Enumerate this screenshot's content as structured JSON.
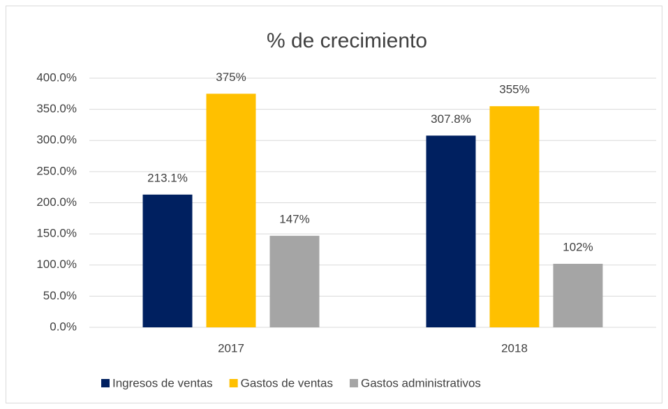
{
  "chart_data": {
    "type": "bar",
    "title": "% de crecimiento",
    "categories": [
      "2017",
      "2018"
    ],
    "series": [
      {
        "name": "Ingresos de ventas",
        "color": "#002060",
        "values": [
          213.1,
          307.8
        ],
        "value_labels": [
          "213.1%",
          "307.8%"
        ]
      },
      {
        "name": "Gastos de ventas",
        "color": "#FFC000",
        "values": [
          375,
          355
        ],
        "value_labels": [
          "375%",
          "355%"
        ]
      },
      {
        "name": "Gastos administrativos",
        "color": "#A5A5A5",
        "values": [
          147,
          102
        ],
        "value_labels": [
          "147%",
          "102%"
        ]
      }
    ],
    "ylim": [
      0,
      400
    ],
    "yticks": [
      {
        "value": 0,
        "label": "0.0%"
      },
      {
        "value": 50,
        "label": "50.0%"
      },
      {
        "value": 100,
        "label": "100.0%"
      },
      {
        "value": 150,
        "label": "150.0%"
      },
      {
        "value": 200,
        "label": "200.0%"
      },
      {
        "value": 250,
        "label": "250.0%"
      },
      {
        "value": 300,
        "label": "300.0%"
      },
      {
        "value": 350,
        "label": "350.0%"
      },
      {
        "value": 400,
        "label": "400.0%"
      }
    ],
    "grid": true,
    "legend": "bottom"
  }
}
